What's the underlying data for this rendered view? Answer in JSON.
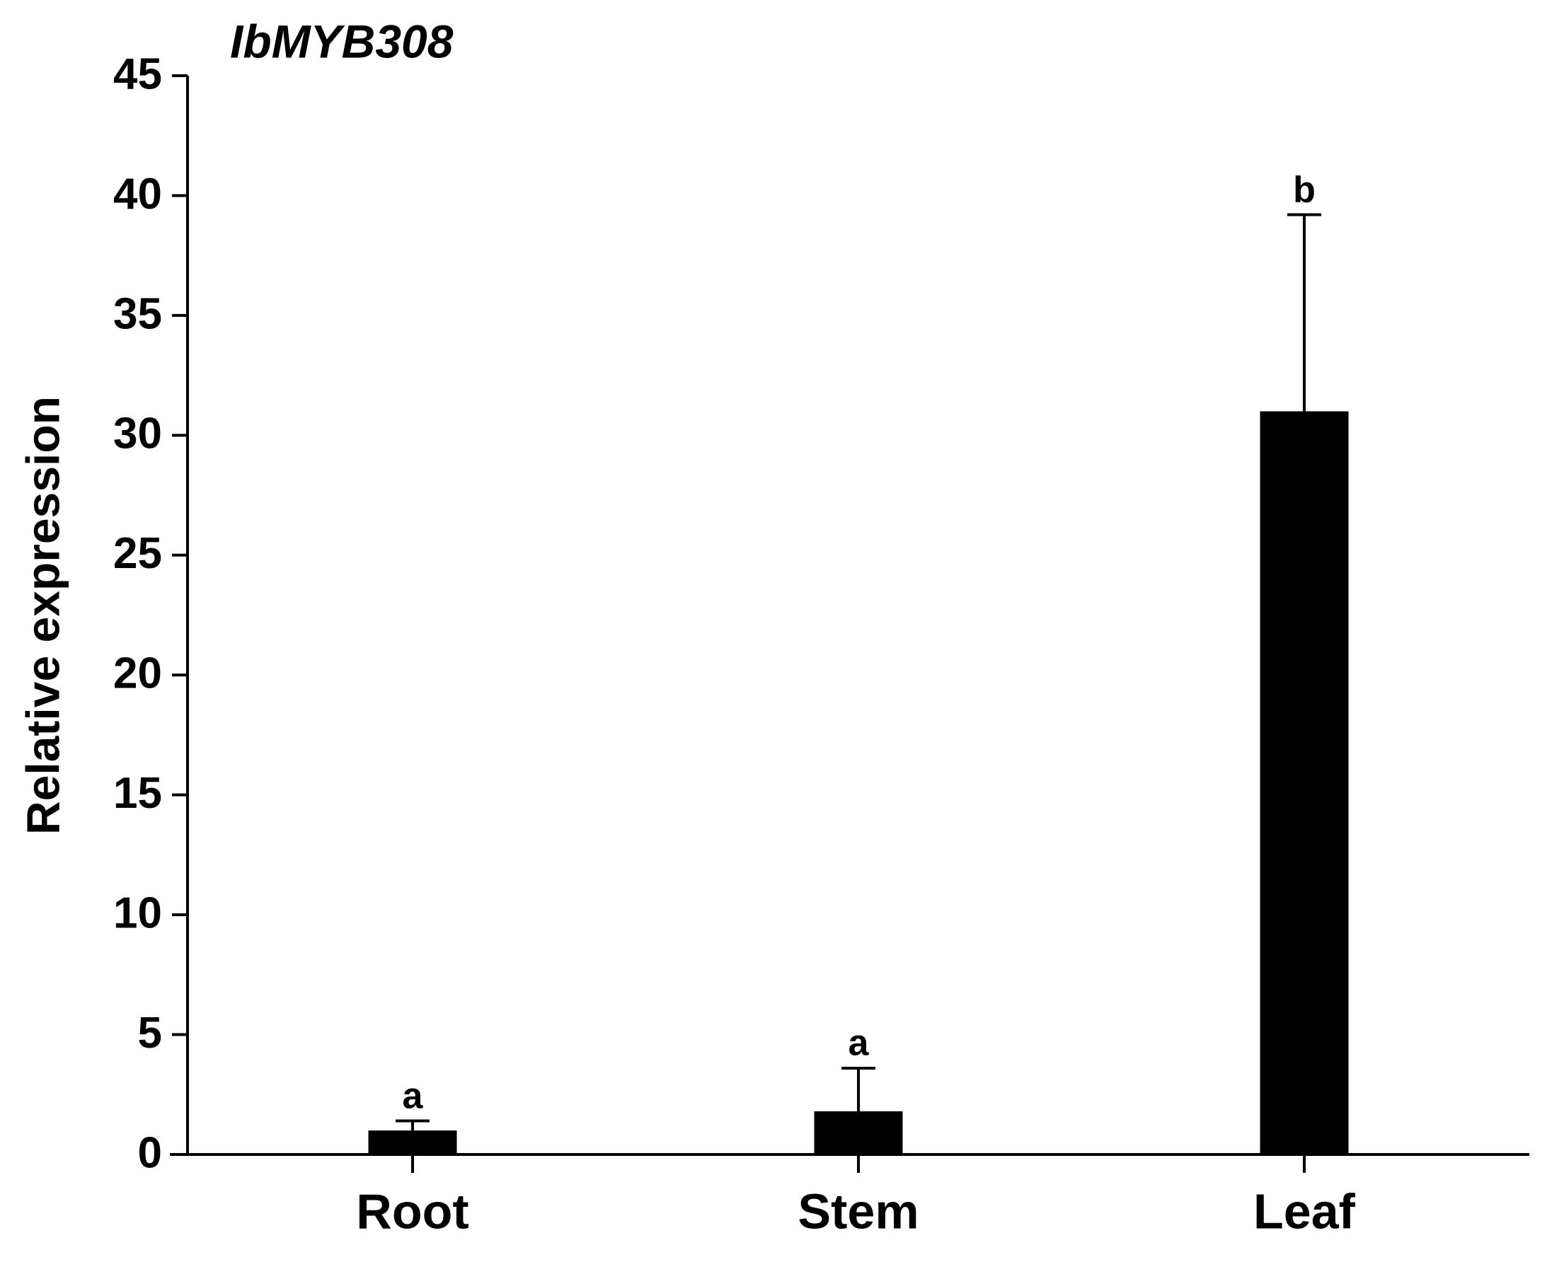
{
  "chart_data": {
    "type": "bar",
    "title": "IbMYB308",
    "ylabel": "Relative expression",
    "categories": [
      "Root",
      "Stem",
      "Leaf"
    ],
    "values": [
      1.0,
      1.8,
      31.0
    ],
    "errors": [
      0.4,
      1.8,
      8.2
    ],
    "annotations": [
      "a",
      "a",
      "b"
    ],
    "color": "#000000",
    "ylim": [
      0,
      45
    ],
    "yticks": [
      0,
      5,
      10,
      15,
      20,
      25,
      30,
      35,
      40,
      45
    ],
    "grid": false
  }
}
